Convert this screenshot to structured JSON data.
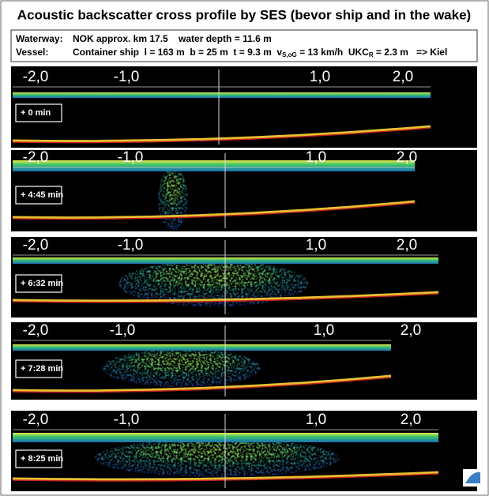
{
  "header": {
    "title": "Acoustic backscatter cross profile by SES (bevor ship and in the wake)"
  },
  "info": {
    "waterway_label": "Waterway:",
    "waterway": "NOK approx. km 17.5    water depth = 11.6 m",
    "vessel_label": "Vessel:",
    "vessel": "Container ship  l = 163 m  b = 25 m  t = 9.3 m  v",
    "vessel_sub1": "S,oG",
    "vessel_mid": " = 13 km/h  UKC",
    "vessel_sub2": "R",
    "vessel_end": " = 2.3 m   => Kiel"
  },
  "axis_labels": [
    "-2,0",
    "-1,0",
    "1,0",
    "2,0"
  ],
  "panels": [
    {
      "time": "+ 0 min"
    },
    {
      "time": "+ 4:45 min"
    },
    {
      "time": "+ 6:32 min"
    },
    {
      "time": "+ 7:28 min"
    },
    {
      "time": "+ 8:25 min"
    }
  ]
}
